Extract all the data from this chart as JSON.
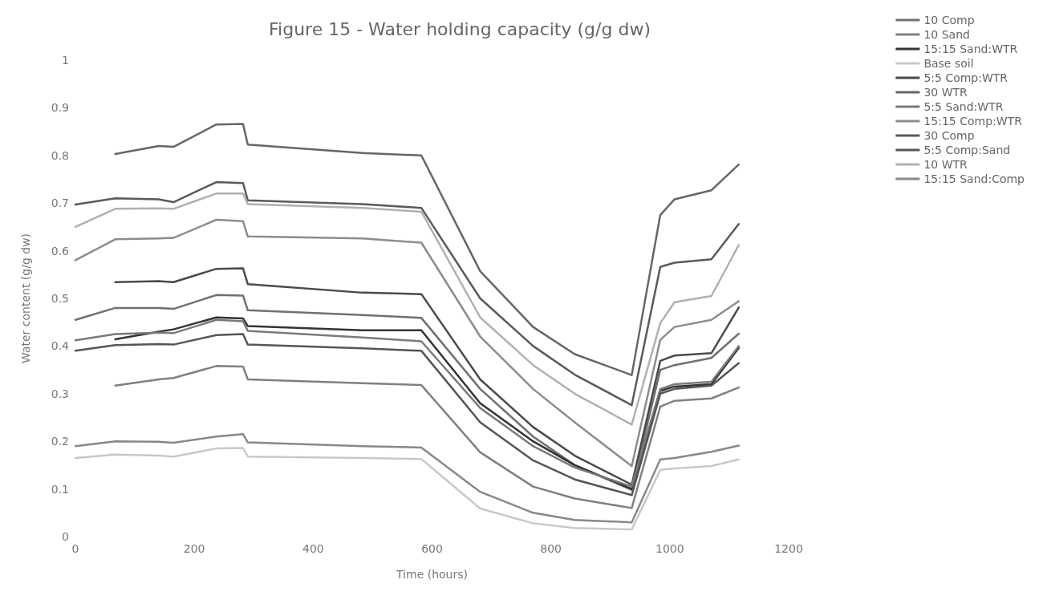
{
  "chart_data": {
    "type": "line",
    "title": "Figure 15 - Water holding capacity (g/g dw)",
    "xlabel": "Time (hours)",
    "ylabel": "Water content (g/g dw)",
    "x": [
      0,
      67,
      140,
      165,
      237,
      282,
      290,
      483,
      582,
      681,
      770,
      840,
      936,
      984,
      1008,
      1070,
      1116
    ],
    "xlim": [
      0,
      1200
    ],
    "xticks": [
      0,
      200,
      400,
      600,
      800,
      1000,
      1200
    ],
    "ylim": [
      0,
      1
    ],
    "yticks": [
      0,
      0.1,
      0.2,
      0.3,
      0.4,
      0.5,
      0.6,
      0.7,
      0.8,
      0.9,
      1
    ],
    "grid": false,
    "legend": "top right",
    "marker": "none",
    "line_style": "solid",
    "series": [
      {
        "name": "10 Comp",
        "color": "#707070",
        "values": [
          0.455,
          0.48,
          0.48,
          0.478,
          0.507,
          0.506,
          0.475,
          0.465,
          0.459,
          0.31,
          0.21,
          0.15,
          0.098,
          0.35,
          0.36,
          0.375,
          0.426
        ]
      },
      {
        "name": "10 Sand",
        "color": "#808080",
        "values": [
          null,
          0.317,
          0.33,
          0.333,
          0.358,
          0.357,
          0.33,
          0.322,
          0.318,
          0.177,
          0.105,
          0.08,
          0.06,
          0.273,
          0.285,
          0.29,
          0.313
        ]
      },
      {
        "name": "15:15 Sand:WTR",
        "color": "#333333",
        "values": [
          null,
          0.414,
          0.43,
          0.435,
          0.46,
          0.458,
          0.442,
          0.433,
          0.433,
          0.28,
          0.2,
          0.15,
          0.1,
          0.306,
          0.315,
          0.32,
          0.396
        ]
      },
      {
        "name": "Base soil",
        "color": "#c8c8c8",
        "values": [
          0.165,
          0.172,
          0.17,
          0.168,
          0.185,
          0.186,
          0.168,
          0.165,
          0.163,
          0.059,
          0.028,
          0.018,
          0.015,
          0.14,
          0.143,
          0.148,
          0.162
        ]
      },
      {
        "name": "5:5 Comp:WTR",
        "color": "#4a4a4a",
        "values": [
          null,
          0.534,
          0.536,
          0.534,
          0.562,
          0.563,
          0.53,
          0.512,
          0.509,
          0.33,
          0.23,
          0.17,
          0.109,
          0.369,
          0.38,
          0.385,
          0.481
        ]
      },
      {
        "name": "30 WTR",
        "color": "#666666",
        "values": [
          null,
          0.803,
          0.82,
          0.818,
          0.865,
          0.866,
          0.823,
          0.805,
          0.8,
          0.557,
          0.44,
          0.383,
          0.339,
          0.675,
          0.708,
          0.727,
          0.781
        ]
      },
      {
        "name": "5:5 Sand:WTR",
        "color": "#7a7a7a",
        "values": [
          0.412,
          0.425,
          0.428,
          0.427,
          0.455,
          0.452,
          0.432,
          0.418,
          0.41,
          0.27,
          0.19,
          0.145,
          0.105,
          0.31,
          0.32,
          0.325,
          0.4
        ]
      },
      {
        "name": "15:15 Comp:WTR",
        "color": "#8c8c8c",
        "values": [
          0.58,
          0.624,
          0.626,
          0.627,
          0.665,
          0.662,
          0.63,
          0.626,
          0.617,
          0.42,
          0.31,
          0.24,
          0.148,
          0.413,
          0.44,
          0.455,
          0.494
        ]
      },
      {
        "name": "30 Comp",
        "color": "#5a5a5a",
        "values": [
          0.697,
          0.71,
          0.708,
          0.702,
          0.744,
          0.742,
          0.706,
          0.698,
          0.69,
          0.5,
          0.4,
          0.34,
          0.276,
          0.566,
          0.575,
          0.582,
          0.656
        ]
      },
      {
        "name": "5:5 Comp:Sand",
        "color": "#555555",
        "values": [
          0.39,
          0.402,
          0.404,
          0.403,
          0.423,
          0.425,
          0.403,
          0.395,
          0.39,
          0.24,
          0.16,
          0.12,
          0.087,
          0.3,
          0.31,
          0.317,
          0.364
        ]
      },
      {
        "name": "10 WTR",
        "color": "#b0b0b0",
        "values": [
          0.65,
          0.688,
          0.689,
          0.688,
          0.72,
          0.72,
          0.698,
          0.69,
          0.682,
          0.46,
          0.36,
          0.3,
          0.235,
          0.448,
          0.492,
          0.505,
          0.612
        ]
      },
      {
        "name": "15:15 Sand:Comp",
        "color": "#888888",
        "values": [
          0.19,
          0.2,
          0.199,
          0.197,
          0.21,
          0.215,
          0.198,
          0.19,
          0.187,
          0.094,
          0.05,
          0.035,
          0.03,
          0.162,
          0.165,
          0.178,
          0.191
        ]
      }
    ]
  }
}
